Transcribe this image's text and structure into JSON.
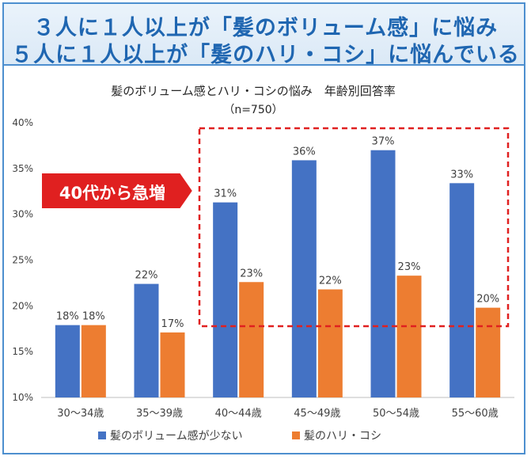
{
  "headlines": [
    "３人に１人以上が「髪のボリューム感」に悩み",
    "５人に１人以上が「髪のハリ・コシ」に悩んでいる"
  ],
  "callout": "40代から急増",
  "colors": {
    "volume": "#4472c4",
    "hari": "#ed7d31",
    "accent": "#1f66b1",
    "callout": "#e02020"
  },
  "chart_data": {
    "type": "bar",
    "title": "髪のボリューム感とハリ・コシの悩み　年齢別回答率",
    "subtitle": "（n=750）",
    "categories": [
      "30～34歳",
      "35～39歳",
      "40～44歳",
      "45～49歳",
      "50～54歳",
      "55～60歳"
    ],
    "series": [
      {
        "name": "髪のボリューム感が少ない",
        "values": [
          17.9,
          22.4,
          31.3,
          35.9,
          37.0,
          33.4
        ],
        "labels": [
          "18%",
          "22%",
          "31%",
          "36%",
          "37%",
          "33%"
        ]
      },
      {
        "name": "髪のハリ・コシ",
        "values": [
          17.9,
          17.1,
          22.6,
          21.8,
          23.3,
          19.8
        ],
        "labels": [
          "18%",
          "17%",
          "23%",
          "22%",
          "23%",
          "20%"
        ]
      }
    ],
    "ylim": [
      10,
      40
    ],
    "yticks": [
      "10%",
      "15%",
      "20%",
      "25%",
      "30%",
      "35%",
      "40%"
    ],
    "legend": "bottom",
    "grid": false
  }
}
